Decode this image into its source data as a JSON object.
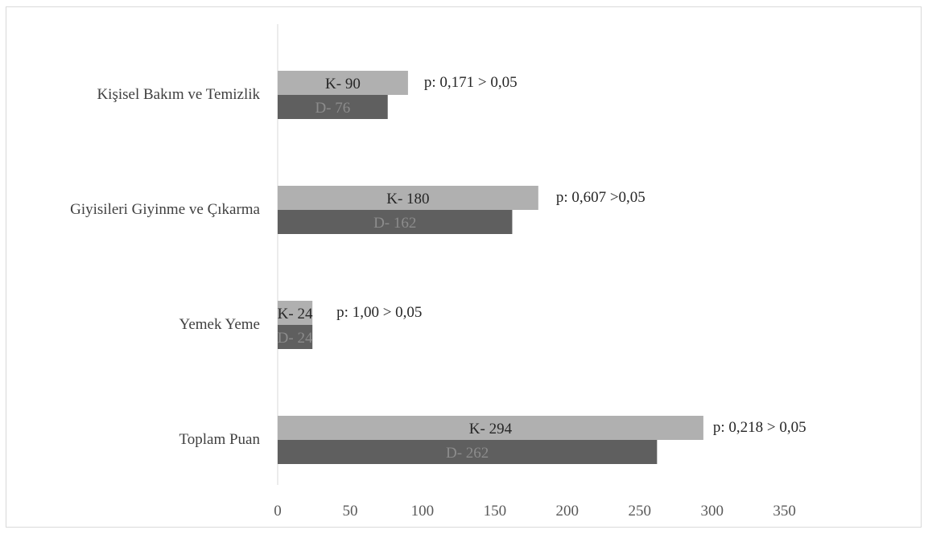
{
  "chart_data": {
    "type": "bar",
    "orientation": "horizontal",
    "categories": [
      "Kişisel Bakım ve Temizlik",
      "Giyisileri Giyinme ve Çıkarma",
      "Yemek Yeme",
      "Toplam Puan"
    ],
    "series": [
      {
        "name": "K",
        "values": [
          90,
          180,
          24,
          294
        ],
        "labels": [
          "K- 90",
          "K- 180",
          "K- 24",
          "K- 294"
        ],
        "color": "#b0b0b0",
        "label_color": "#262626"
      },
      {
        "name": "D",
        "values": [
          76,
          162,
          24,
          262
        ],
        "labels": [
          "D- 76",
          "D- 162",
          "D- 24",
          "D- 262"
        ],
        "color": "#5f5f5f",
        "label_color": "#8c8c8c"
      }
    ],
    "annotations": [
      "p: 0,171 > 0,05",
      "p: 0,607 >0,05",
      "p: 1,00 > 0,05",
      "p: 0,218 > 0,05"
    ],
    "xticks": [
      "0",
      "50",
      "100",
      "150",
      "200",
      "250",
      "300",
      "350"
    ],
    "xlim": [
      0,
      350
    ],
    "title": "",
    "xlabel": "",
    "ylabel": "",
    "grid": false,
    "legend": "none",
    "axis_color": "#d9d9d9"
  }
}
